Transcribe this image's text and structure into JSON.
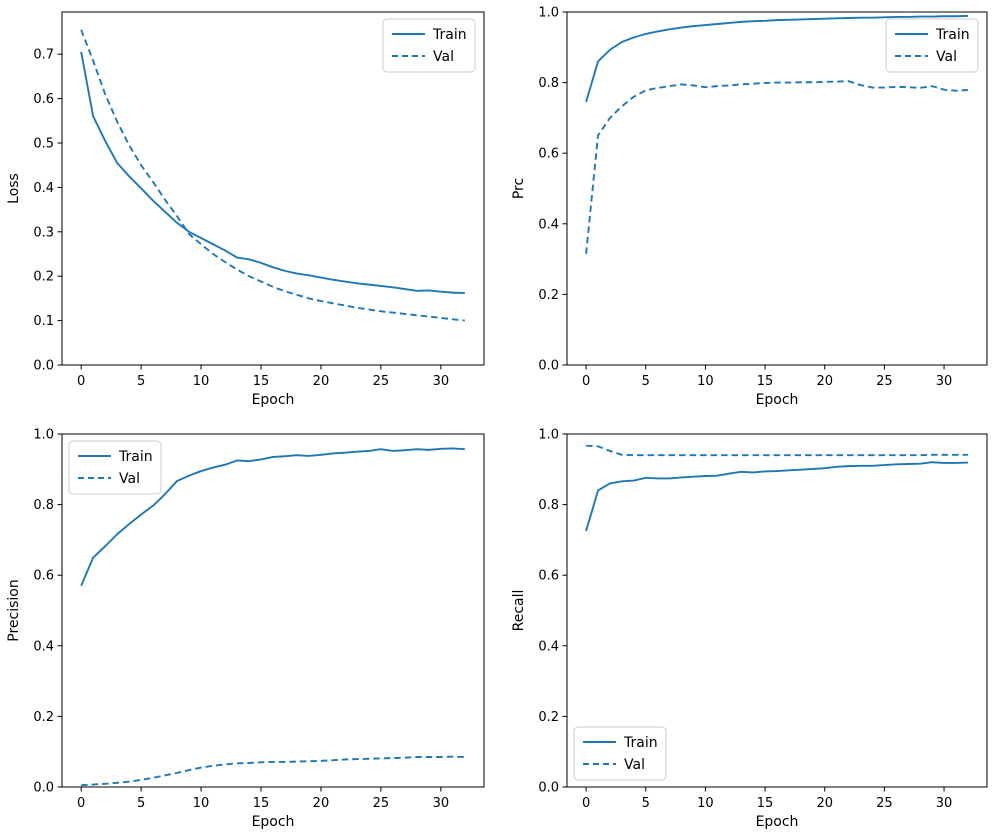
{
  "figure": {
    "background": "#ffffff",
    "accent_color": "#1f77b4",
    "spine_color": "#000000",
    "legend_border_color": "#cccccc"
  },
  "chart_data": [
    {
      "id": "loss",
      "type": "line",
      "title": "",
      "xlabel": "Epoch",
      "ylabel": "Loss",
      "xlim": [
        -1.6,
        33.6
      ],
      "ylim": [
        0,
        0.795
      ],
      "xticks": [
        0,
        5,
        10,
        15,
        20,
        25,
        30
      ],
      "yticks": [
        0.0,
        0.1,
        0.2,
        0.3,
        0.4,
        0.5,
        0.6,
        0.7
      ],
      "ytick_decimals": 1,
      "grid": false,
      "legend_position": "upper-right",
      "x": [
        0,
        1,
        2,
        3,
        4,
        5,
        6,
        7,
        8,
        9,
        10,
        11,
        12,
        13,
        14,
        15,
        16,
        17,
        18,
        19,
        20,
        21,
        22,
        23,
        24,
        25,
        26,
        27,
        28,
        29,
        30,
        31,
        32
      ],
      "series": [
        {
          "name": "Train",
          "line_style": "solid",
          "color": "#1f77b4",
          "values": [
            0.705,
            0.56,
            0.505,
            0.455,
            0.425,
            0.398,
            0.37,
            0.345,
            0.32,
            0.3,
            0.286,
            0.272,
            0.258,
            0.242,
            0.238,
            0.23,
            0.22,
            0.212,
            0.206,
            0.202,
            0.197,
            0.192,
            0.188,
            0.184,
            0.181,
            0.178,
            0.175,
            0.171,
            0.167,
            0.168,
            0.165,
            0.163,
            0.162
          ]
        },
        {
          "name": "Val",
          "line_style": "dashed",
          "color": "#1f77b4",
          "values": [
            0.755,
            0.685,
            0.61,
            0.548,
            0.495,
            0.45,
            0.412,
            0.372,
            0.335,
            0.295,
            0.272,
            0.25,
            0.232,
            0.215,
            0.2,
            0.188,
            0.176,
            0.166,
            0.158,
            0.15,
            0.144,
            0.139,
            0.134,
            0.129,
            0.125,
            0.121,
            0.118,
            0.115,
            0.112,
            0.109,
            0.106,
            0.103,
            0.1
          ]
        }
      ]
    },
    {
      "id": "prc",
      "type": "line",
      "title": "",
      "xlabel": "Epoch",
      "ylabel": "Prc",
      "xlim": [
        -1.6,
        33.6
      ],
      "ylim": [
        0,
        1.0
      ],
      "xticks": [
        0,
        5,
        10,
        15,
        20,
        25,
        30
      ],
      "yticks": [
        0.0,
        0.2,
        0.4,
        0.6,
        0.8,
        1.0
      ],
      "ytick_decimals": 1,
      "grid": false,
      "legend_position": "upper-right",
      "x": [
        0,
        1,
        2,
        3,
        4,
        5,
        6,
        7,
        8,
        9,
        10,
        11,
        12,
        13,
        14,
        15,
        16,
        17,
        18,
        19,
        20,
        21,
        22,
        23,
        24,
        25,
        26,
        27,
        28,
        29,
        30,
        31,
        32
      ],
      "series": [
        {
          "name": "Train",
          "line_style": "solid",
          "color": "#1f77b4",
          "values": [
            0.745,
            0.86,
            0.893,
            0.915,
            0.928,
            0.938,
            0.945,
            0.951,
            0.956,
            0.96,
            0.963,
            0.966,
            0.969,
            0.972,
            0.974,
            0.975,
            0.977,
            0.978,
            0.979,
            0.98,
            0.981,
            0.982,
            0.983,
            0.984,
            0.984,
            0.985,
            0.986,
            0.986,
            0.987,
            0.987,
            0.988,
            0.988,
            0.989
          ]
        },
        {
          "name": "Val",
          "line_style": "dashed",
          "color": "#1f77b4",
          "values": [
            0.315,
            0.65,
            0.7,
            0.733,
            0.76,
            0.778,
            0.785,
            0.79,
            0.795,
            0.792,
            0.787,
            0.79,
            0.792,
            0.795,
            0.797,
            0.799,
            0.8,
            0.8,
            0.801,
            0.801,
            0.802,
            0.803,
            0.804,
            0.793,
            0.786,
            0.786,
            0.788,
            0.787,
            0.785,
            0.79,
            0.78,
            0.777,
            0.779
          ]
        }
      ]
    },
    {
      "id": "precision",
      "type": "line",
      "title": "",
      "xlabel": "Epoch",
      "ylabel": "Precision",
      "xlim": [
        -1.6,
        33.6
      ],
      "ylim": [
        0,
        1.0
      ],
      "xticks": [
        0,
        5,
        10,
        15,
        20,
        25,
        30
      ],
      "yticks": [
        0.0,
        0.2,
        0.4,
        0.6,
        0.8,
        1.0
      ],
      "ytick_decimals": 1,
      "grid": false,
      "legend_position": "upper-left",
      "x": [
        0,
        1,
        2,
        3,
        4,
        5,
        6,
        7,
        8,
        9,
        10,
        11,
        12,
        13,
        14,
        15,
        16,
        17,
        18,
        19,
        20,
        21,
        22,
        23,
        24,
        25,
        26,
        27,
        28,
        29,
        30,
        31,
        32
      ],
      "series": [
        {
          "name": "Train",
          "line_style": "solid",
          "color": "#1f77b4",
          "values": [
            0.57,
            0.65,
            0.682,
            0.716,
            0.745,
            0.772,
            0.797,
            0.83,
            0.867,
            0.882,
            0.895,
            0.905,
            0.913,
            0.925,
            0.923,
            0.928,
            0.935,
            0.937,
            0.94,
            0.938,
            0.941,
            0.945,
            0.947,
            0.95,
            0.952,
            0.957,
            0.952,
            0.954,
            0.957,
            0.955,
            0.958,
            0.959,
            0.957
          ]
        },
        {
          "name": "Val",
          "line_style": "dashed",
          "color": "#1f77b4",
          "values": [
            0.005,
            0.007,
            0.009,
            0.012,
            0.015,
            0.02,
            0.026,
            0.033,
            0.04,
            0.048,
            0.055,
            0.06,
            0.064,
            0.067,
            0.068,
            0.07,
            0.071,
            0.071,
            0.072,
            0.073,
            0.074,
            0.076,
            0.078,
            0.079,
            0.08,
            0.081,
            0.082,
            0.083,
            0.085,
            0.085,
            0.085,
            0.086,
            0.085
          ]
        }
      ]
    },
    {
      "id": "recall",
      "type": "line",
      "title": "",
      "xlabel": "Epoch",
      "ylabel": "Recall",
      "xlim": [
        -1.6,
        33.6
      ],
      "ylim": [
        0,
        1.0
      ],
      "xticks": [
        0,
        5,
        10,
        15,
        20,
        25,
        30
      ],
      "yticks": [
        0.0,
        0.2,
        0.4,
        0.6,
        0.8,
        1.0
      ],
      "ytick_decimals": 1,
      "grid": false,
      "legend_position": "lower-left",
      "x": [
        0,
        1,
        2,
        3,
        4,
        5,
        6,
        7,
        8,
        9,
        10,
        11,
        12,
        13,
        14,
        15,
        16,
        17,
        18,
        19,
        20,
        21,
        22,
        23,
        24,
        25,
        26,
        27,
        28,
        29,
        30,
        31,
        32
      ],
      "series": [
        {
          "name": "Train",
          "line_style": "solid",
          "color": "#1f77b4",
          "values": [
            0.725,
            0.84,
            0.86,
            0.866,
            0.868,
            0.876,
            0.874,
            0.874,
            0.877,
            0.879,
            0.881,
            0.882,
            0.888,
            0.893,
            0.891,
            0.894,
            0.895,
            0.897,
            0.899,
            0.901,
            0.903,
            0.907,
            0.909,
            0.91,
            0.91,
            0.912,
            0.914,
            0.915,
            0.916,
            0.92,
            0.918,
            0.918,
            0.919
          ]
        },
        {
          "name": "Val",
          "line_style": "dashed",
          "color": "#1f77b4",
          "values": [
            0.967,
            0.965,
            0.952,
            0.941,
            0.94,
            0.94,
            0.94,
            0.94,
            0.94,
            0.94,
            0.94,
            0.94,
            0.94,
            0.94,
            0.94,
            0.94,
            0.94,
            0.94,
            0.94,
            0.94,
            0.94,
            0.94,
            0.94,
            0.94,
            0.94,
            0.94,
            0.94,
            0.94,
            0.94,
            0.941,
            0.941,
            0.941,
            0.941
          ]
        }
      ]
    }
  ]
}
